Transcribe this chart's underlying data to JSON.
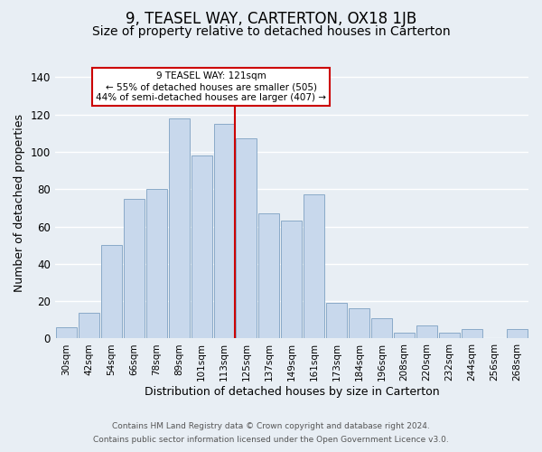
{
  "title": "9, TEASEL WAY, CARTERTON, OX18 1JB",
  "subtitle": "Size of property relative to detached houses in Carterton",
  "xlabel": "Distribution of detached houses by size in Carterton",
  "ylabel": "Number of detached properties",
  "bar_labels": [
    "30sqm",
    "42sqm",
    "54sqm",
    "66sqm",
    "78sqm",
    "89sqm",
    "101sqm",
    "113sqm",
    "125sqm",
    "137sqm",
    "149sqm",
    "161sqm",
    "173sqm",
    "184sqm",
    "196sqm",
    "208sqm",
    "220sqm",
    "232sqm",
    "244sqm",
    "256sqm",
    "268sqm"
  ],
  "bar_values": [
    6,
    14,
    50,
    75,
    80,
    118,
    98,
    115,
    107,
    67,
    63,
    77,
    19,
    16,
    11,
    3,
    7,
    3,
    5,
    0,
    5
  ],
  "bar_color": "#c8d8ec",
  "bar_edge_color": "#8aaac8",
  "vline_color": "#cc0000",
  "annotation_title": "9 TEASEL WAY: 121sqm",
  "annotation_line1": "← 55% of detached houses are smaller (505)",
  "annotation_line2": "44% of semi-detached houses are larger (407) →",
  "annotation_box_facecolor": "#ffffff",
  "annotation_box_edgecolor": "#cc0000",
  "ylim": [
    0,
    145
  ],
  "yticks": [
    0,
    20,
    40,
    60,
    80,
    100,
    120,
    140
  ],
  "footnote1": "Contains HM Land Registry data © Crown copyright and database right 2024.",
  "footnote2": "Contains public sector information licensed under the Open Government Licence v3.0.",
  "fig_facecolor": "#e8eef4",
  "plot_facecolor": "#e8eef4",
  "grid_color": "#ffffff",
  "title_fontsize": 12,
  "subtitle_fontsize": 10,
  "axis_label_fontsize": 9,
  "tick_fontsize": 7.5,
  "footnote_fontsize": 6.5
}
